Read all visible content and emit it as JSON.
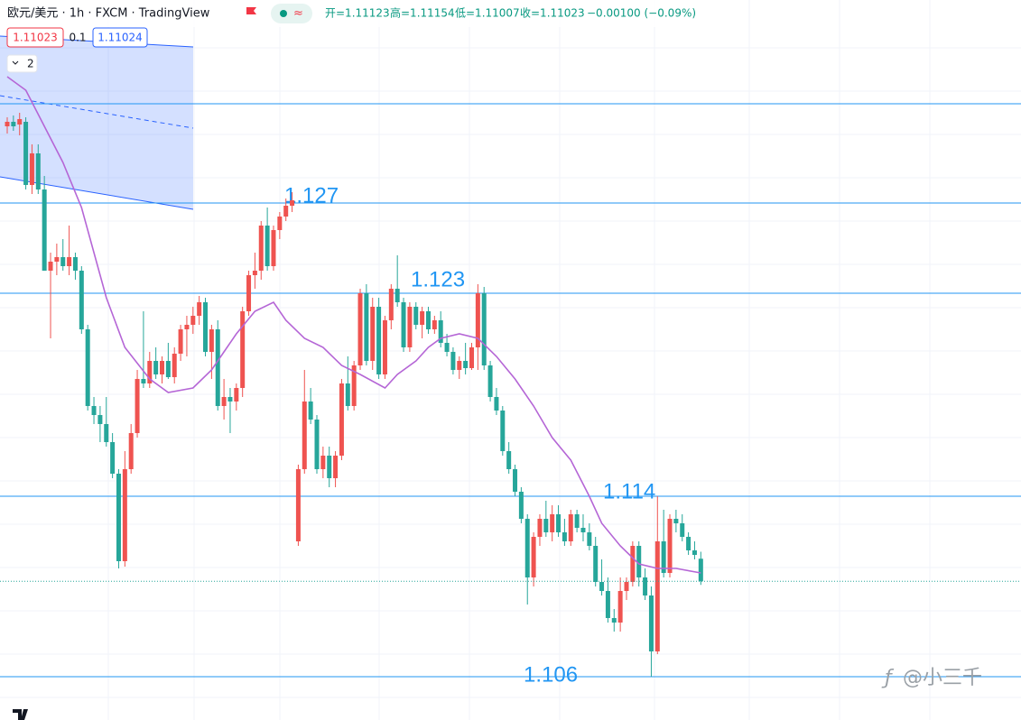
{
  "header": {
    "symbol": "欧元/美元 · 1h · FXCM · TradingView",
    "open": "开=1.11123",
    "high": "高=1.11154",
    "low": "低=1.11007",
    "close": "收=1.11023",
    "change": "−0.00100 (−0.09%)",
    "sell": "1.11023",
    "spread": "0.1",
    "buy": "1.11024",
    "collapse": "2"
  },
  "watermark": "@小三千",
  "chart_data": {
    "type": "candlestick",
    "up_color": "#ef5350",
    "down_color": "#26a69a",
    "ylim": [
      1.104,
      1.136
    ],
    "open": [
      1.1304,
      1.1306,
      1.13048,
      1.1306,
      1.1278,
      1.1292,
      1.1276,
      1.124,
      1.1244,
      1.1246,
      1.1242,
      1.1246,
      1.124,
      1.1214,
      1.118,
      1.1176,
      1.1172,
      1.1164,
      1.115,
      1.11112,
      1.1152,
      1.1168,
      1.1192,
      1.119,
      1.12,
      1.1194,
      1.12,
      1.11928,
      1.12032,
      1.1214,
      1.1216,
      1.122,
      1.1226,
      1.1204,
      1.1214,
      1.118,
      1.1184,
      1.1182,
      1.1188,
      1.1222,
      1.1238,
      1.124,
      1.126,
      1.1242,
      1.1258,
      1.1264,
      1.12688,
      1.112,
      1.1152,
      1.1182,
      1.1174,
      1.1152,
      1.1158,
      1.1148,
      1.1158,
      1.119,
      1.118,
      1.1198,
      1.123,
      1.12,
      1.1224,
      1.1194,
      1.1218,
      1.1232,
      1.1226,
      1.1206,
      1.1224,
      1.1216,
      1.1222,
      1.1214,
      1.1218,
      1.1208,
      1.1204,
      1.1196,
      1.12,
      1.11968,
      1.1206,
      1.123,
      1.1198,
      1.1184,
      1.1178,
      1.116,
      1.1152,
      1.1142,
      1.113,
      1.1104,
      1.1122,
      1.113,
      1.1124,
      1.1132,
      1.1124,
      1.112,
      1.1132,
      1.1126,
      1.1124,
      1.1118,
      1.1102,
      1.1098,
      1.1086,
      1.1084,
      1.1098,
      1.1102,
      1.1118,
      1.1104,
      1.1096,
      1.10712,
      1.112,
      1.1106,
      1.113,
      1.1128,
      1.1122,
      1.1116,
      1.11123
    ],
    "high": [
      1.1308,
      1.13088,
      1.131,
      1.1308,
      1.1296,
      1.1296,
      1.1282,
      1.1248,
      1.1252,
      1.1254,
      1.126,
      1.1248,
      1.1242,
      1.1216,
      1.1184,
      1.118,
      1.1184,
      1.1168,
      1.1152,
      1.116,
      1.1172,
      1.1196,
      1.1222,
      1.1204,
      1.1206,
      1.1202,
      1.1208,
      1.1206,
      1.1216,
      1.122,
      1.1224,
      1.12288,
      1.1228,
      1.1216,
      1.1218,
      1.1192,
      1.1188,
      1.119,
      1.1224,
      1.124,
      1.1248,
      1.1262,
      1.1268,
      1.126,
      1.1266,
      1.1272,
      1.12748,
      1.1154,
      1.1196,
      1.1188,
      1.1176,
      1.1162,
      1.1162,
      1.116,
      1.1192,
      1.1202,
      1.12,
      1.1232,
      1.1234,
      1.1228,
      1.1228,
      1.122,
      1.1234,
      1.12468,
      1.1228,
      1.1226,
      1.1226,
      1.1224,
      1.1224,
      1.122,
      1.1222,
      1.1212,
      1.1206,
      1.1202,
      1.1208,
      1.1208,
      1.1234,
      1.12328,
      1.12,
      1.1188,
      1.118,
      1.1164,
      1.1154,
      1.1144,
      1.1132,
      1.1124,
      1.1132,
      1.1138,
      1.1136,
      1.1136,
      1.113,
      1.1134,
      1.1134,
      1.1132,
      1.1128,
      1.1122,
      1.1112,
      1.1104,
      1.109,
      1.1104,
      1.1104,
      1.112,
      1.112,
      1.1108,
      1.11,
      1.114,
      1.1134,
      1.1132,
      1.1134,
      1.1132,
      1.1124,
      1.112,
      1.11154
    ],
    "low": [
      1.13008,
      1.1302,
      1.13,
      1.1276,
      1.1274,
      1.1274,
      1.124,
      1.121,
      1.1238,
      1.124,
      1.1238,
      1.1236,
      1.1212,
      1.1178,
      1.1172,
      1.1164,
      1.1162,
      1.1148,
      1.1108,
      1.11088,
      1.115,
      1.1166,
      1.1188,
      1.1188,
      1.1192,
      1.119,
      1.1192,
      1.119,
      1.12,
      1.1202,
      1.1212,
      1.1216,
      1.1202,
      1.1192,
      1.1178,
      1.1174,
      1.1168,
      1.1178,
      1.1184,
      1.122,
      1.1232,
      1.1236,
      1.124,
      1.124,
      1.1254,
      1.1262,
      1.1266,
      1.1118,
      1.115,
      1.1172,
      1.115,
      1.1148,
      1.1144,
      1.1144,
      1.1156,
      1.1178,
      1.1178,
      1.1196,
      1.1198,
      1.1196,
      1.1192,
      1.1192,
      1.1214,
      1.1224,
      1.1204,
      1.1204,
      1.1214,
      1.121,
      1.1212,
      1.1212,
      1.1206,
      1.1202,
      1.1194,
      1.1192,
      1.1194,
      1.1196,
      1.1196,
      1.1196,
      1.1182,
      1.1176,
      1.1158,
      1.115,
      1.114,
      1.1128,
      1.1092,
      1.11,
      1.1118,
      1.1122,
      1.112,
      1.1122,
      1.1118,
      1.1118,
      1.1124,
      1.112,
      1.1116,
      1.11,
      1.1096,
      1.1084,
      1.108,
      1.108,
      1.1094,
      1.11,
      1.11,
      1.1094,
      1.106,
      1.107,
      1.1104,
      1.1104,
      1.1124,
      1.112,
      1.1114,
      1.1112,
      1.11007
    ],
    "close": [
      1.1306,
      1.1304,
      1.13072,
      1.1278,
      1.1292,
      1.1276,
      1.124,
      1.1244,
      1.1246,
      1.1242,
      1.1246,
      1.124,
      1.1214,
      1.118,
      1.1176,
      1.1172,
      1.1164,
      1.115,
      1.11112,
      1.1152,
      1.1168,
      1.1192,
      1.119,
      1.12,
      1.1194,
      1.12,
      1.11928,
      1.12032,
      1.1214,
      1.1216,
      1.122,
      1.1226,
      1.1204,
      1.1214,
      1.118,
      1.1184,
      1.1182,
      1.1188,
      1.1222,
      1.1238,
      1.124,
      1.126,
      1.1242,
      1.1258,
      1.1264,
      1.12688,
      1.12712,
      1.1152,
      1.1182,
      1.1174,
      1.1152,
      1.1158,
      1.1148,
      1.1158,
      1.119,
      1.118,
      1.1198,
      1.123,
      1.12,
      1.1224,
      1.1194,
      1.1218,
      1.1232,
      1.1226,
      1.1206,
      1.1224,
      1.1216,
      1.1222,
      1.1214,
      1.1218,
      1.1208,
      1.1204,
      1.1196,
      1.12,
      1.11968,
      1.1206,
      1.123,
      1.1198,
      1.1184,
      1.1178,
      1.116,
      1.1152,
      1.1142,
      1.113,
      1.1104,
      1.1122,
      1.113,
      1.1124,
      1.1132,
      1.1124,
      1.112,
      1.1132,
      1.1126,
      1.1124,
      1.1118,
      1.1102,
      1.1098,
      1.1086,
      1.1084,
      1.1098,
      1.1102,
      1.1118,
      1.1104,
      1.1096,
      1.10712,
      1.112,
      1.1106,
      1.113,
      1.1128,
      1.1122,
      1.1116,
      1.1114,
      1.11023
    ],
    "ma": {
      "color": "#b566d6",
      "x": [
        0,
        3,
        9,
        12,
        16,
        19,
        23,
        26,
        30,
        33,
        35,
        37,
        40,
        43,
        45,
        48,
        51,
        54,
        57,
        61,
        63,
        66,
        68,
        70,
        73,
        76,
        79,
        82,
        85,
        88,
        91,
        94,
        96,
        99,
        102,
        105,
        108,
        112
      ],
      "values": [
        1.1326,
        1.132,
        1.1288,
        1.1268,
        1.1228,
        1.1206,
        1.1192,
        1.1186,
        1.1188,
        1.1196,
        1.1204,
        1.1212,
        1.1222,
        1.1226,
        1.1218,
        1.121,
        1.1206,
        1.1198,
        1.1194,
        1.1188,
        1.1194,
        1.12,
        1.1206,
        1.121,
        1.1212,
        1.121,
        1.1202,
        1.1192,
        1.118,
        1.1166,
        1.1156,
        1.114,
        1.1128,
        1.1118,
        1.111,
        1.1108,
        1.1108,
        1.1106
      ]
    },
    "levels": [
      1.1314,
      1.127,
      1.123,
      1.114,
      1.106
    ],
    "level_color": "#2196f3"
  }
}
